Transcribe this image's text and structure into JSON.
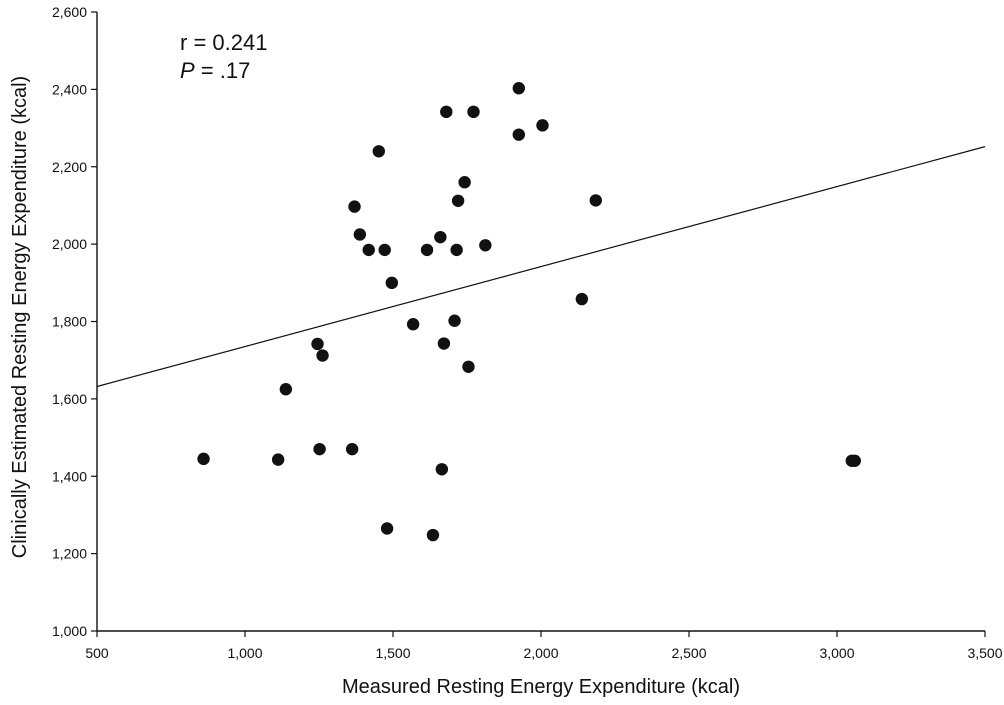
{
  "chart_data": {
    "type": "scatter",
    "xlabel": "Measured Resting Energy Expenditure (kcal)",
    "ylabel": "Clinically Estimated Resting Energy Expenditure (kcal)",
    "xlim": [
      500,
      3500
    ],
    "ylim": [
      1000,
      2600
    ],
    "x_ticks": [
      500,
      1000,
      1500,
      2000,
      2500,
      3000,
      3500
    ],
    "x_tick_labels": [
      "500",
      "1,000",
      "1,500",
      "2,000",
      "2,500",
      "3,000",
      "3,500"
    ],
    "y_ticks": [
      1000,
      1200,
      1400,
      1600,
      1800,
      2000,
      2200,
      2400,
      2600
    ],
    "y_tick_labels": [
      "1,000",
      "1,200",
      "1,400",
      "1,600",
      "1,800",
      "2,000",
      "2,200",
      "2,400",
      "2,600"
    ],
    "grid": false,
    "annotation": {
      "r_text": "r = 0.241",
      "p_label": "P",
      "p_value": " = .17"
    },
    "regression_line": {
      "x": [
        500,
        3500
      ],
      "y": [
        1632,
        2252
      ]
    },
    "points": [
      {
        "x": 860,
        "y": 1445
      },
      {
        "x": 1112,
        "y": 1443
      },
      {
        "x": 1138,
        "y": 1625
      },
      {
        "x": 1245,
        "y": 1742
      },
      {
        "x": 1252,
        "y": 1470
      },
      {
        "x": 1262,
        "y": 1712
      },
      {
        "x": 1362,
        "y": 1470
      },
      {
        "x": 1370,
        "y": 2097
      },
      {
        "x": 1388,
        "y": 2025
      },
      {
        "x": 1418,
        "y": 1985
      },
      {
        "x": 1452,
        "y": 2240
      },
      {
        "x": 1472,
        "y": 1985
      },
      {
        "x": 1480,
        "y": 1265
      },
      {
        "x": 1496,
        "y": 1900
      },
      {
        "x": 1568,
        "y": 1793
      },
      {
        "x": 1615,
        "y": 1985
      },
      {
        "x": 1635,
        "y": 1248
      },
      {
        "x": 1660,
        "y": 2018
      },
      {
        "x": 1665,
        "y": 1418
      },
      {
        "x": 1672,
        "y": 1743
      },
      {
        "x": 1680,
        "y": 2342
      },
      {
        "x": 1708,
        "y": 1802
      },
      {
        "x": 1715,
        "y": 1985
      },
      {
        "x": 1720,
        "y": 2112
      },
      {
        "x": 1742,
        "y": 2160
      },
      {
        "x": 1755,
        "y": 1683
      },
      {
        "x": 1772,
        "y": 2342
      },
      {
        "x": 1812,
        "y": 1997
      },
      {
        "x": 1925,
        "y": 2403
      },
      {
        "x": 1925,
        "y": 2283
      },
      {
        "x": 2005,
        "y": 2307
      },
      {
        "x": 2138,
        "y": 1858
      },
      {
        "x": 2185,
        "y": 2113
      },
      {
        "x": 3050,
        "y": 1440
      },
      {
        "x": 3060,
        "y": 1440
      }
    ]
  }
}
